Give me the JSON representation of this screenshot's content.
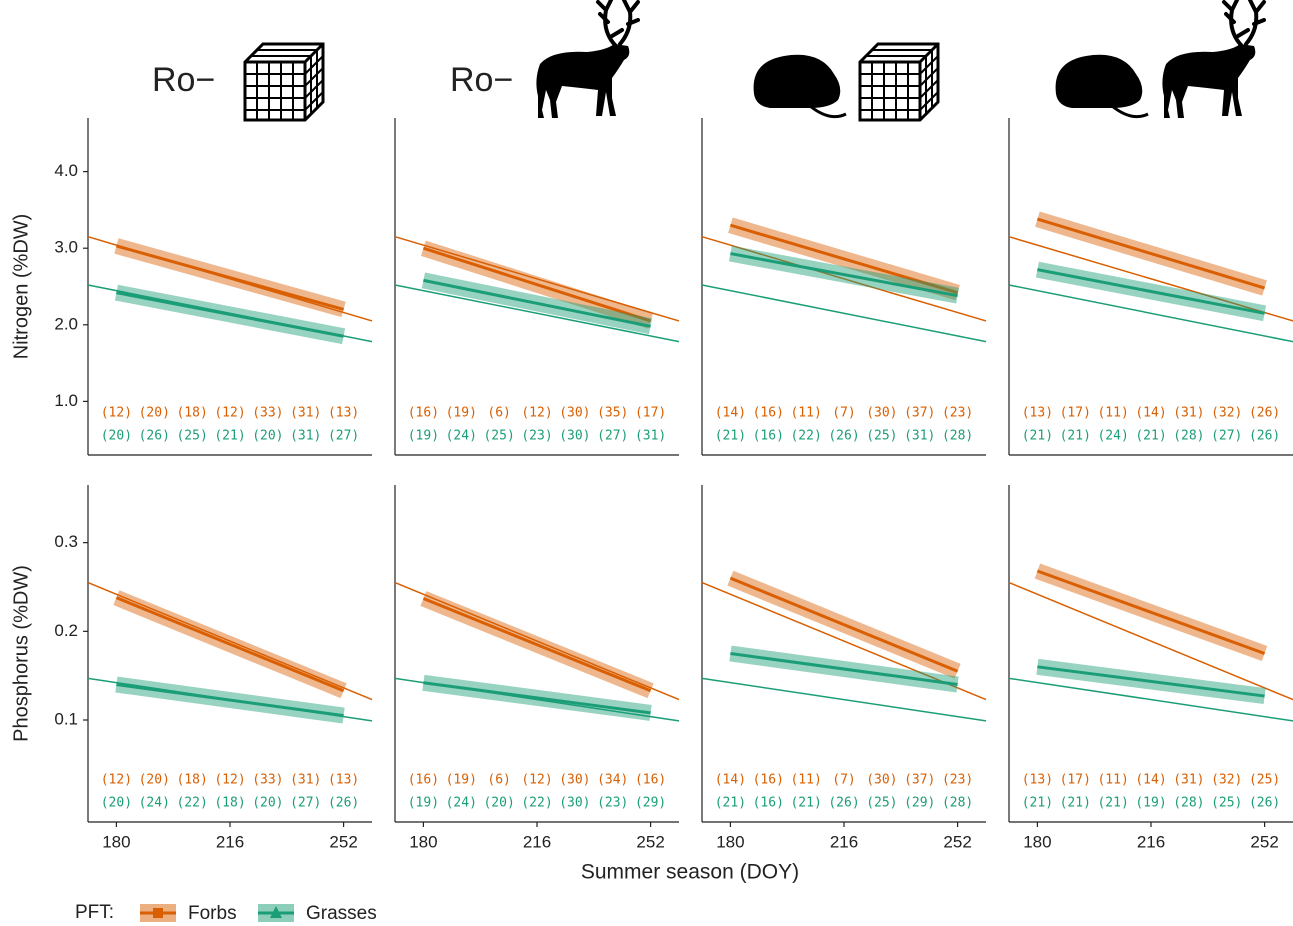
{
  "headers": [
    "Ro−",
    "Ro−"
  ],
  "figure": {
    "xlabel": "Summer season (DOY)",
    "legend_title": "PFT:"
  },
  "chart_data": [
    {
      "type": "line",
      "ylabel": "Nitrogen (%DW)",
      "xlim": [
        171,
        261
      ],
      "ylim": [
        0.3,
        4.7
      ],
      "yticks": [
        {
          "value": 1,
          "label": "1.0"
        },
        {
          "value": 2,
          "label": "2.0"
        },
        {
          "value": 3,
          "label": "3.0"
        },
        {
          "value": 4,
          "label": "4.0"
        }
      ],
      "groups": [
        180,
        192,
        204,
        216,
        228,
        240,
        252
      ],
      "series": [
        {
          "name": "Forbs",
          "color": "#d95f02",
          "marker": "square",
          "x": [
            180,
            252
          ],
          "values": [
            3.03,
            2.2
          ],
          "ref_x": [
            171,
            261
          ],
          "ref_values": [
            3.15,
            2.05
          ],
          "n": [
            12,
            20,
            18,
            12,
            33,
            31,
            13
          ],
          "n_labels": [
            "(12)",
            "(20)",
            "(18)",
            "(12)",
            "(33)",
            "(31)",
            "(13)"
          ]
        },
        {
          "name": "Grasses",
          "color": "#1b9e77",
          "marker": "triangle",
          "x": [
            180,
            252
          ],
          "values": [
            2.42,
            1.85
          ],
          "ref_x": [
            171,
            261
          ],
          "ref_values": [
            2.52,
            1.78
          ],
          "n": [
            20,
            26,
            25,
            21,
            20,
            31,
            27
          ],
          "n_labels": [
            "(20)",
            "(26)",
            "(25)",
            "(21)",
            "(20)",
            "(31)",
            "(27)"
          ]
        }
      ]
    },
    {
      "type": "line",
      "xlim": [
        171,
        261
      ],
      "ylim": [
        0.3,
        4.7
      ],
      "groups": [
        180,
        192,
        204,
        216,
        228,
        240,
        252
      ],
      "series": [
        {
          "name": "Forbs",
          "color": "#d95f02",
          "x": [
            180,
            252
          ],
          "values": [
            3.0,
            2.05
          ],
          "ref_x": [
            171,
            261
          ],
          "ref_values": [
            3.15,
            2.05
          ],
          "n": [
            16,
            19,
            6,
            12,
            30,
            35,
            17
          ],
          "n_labels": [
            "(16)",
            "(19)",
            "(6)",
            "(12)",
            "(30)",
            "(35)",
            "(17)"
          ]
        },
        {
          "name": "Grasses",
          "color": "#1b9e77",
          "x": [
            180,
            252
          ],
          "values": [
            2.58,
            1.98
          ],
          "ref_x": [
            171,
            261
          ],
          "ref_values": [
            2.52,
            1.78
          ],
          "n": [
            19,
            24,
            25,
            23,
            30,
            27,
            31
          ],
          "n_labels": [
            "(19)",
            "(24)",
            "(25)",
            "(23)",
            "(30)",
            "(27)",
            "(31)"
          ]
        }
      ]
    },
    {
      "type": "line",
      "xlim": [
        171,
        261
      ],
      "ylim": [
        0.3,
        4.7
      ],
      "groups": [
        180,
        192,
        204,
        216,
        228,
        240,
        252
      ],
      "series": [
        {
          "name": "Forbs",
          "color": "#d95f02",
          "x": [
            180,
            252
          ],
          "values": [
            3.3,
            2.42
          ],
          "ref_x": [
            171,
            261
          ],
          "ref_values": [
            3.15,
            2.05
          ],
          "n": [
            14,
            16,
            11,
            7,
            30,
            37,
            23
          ],
          "n_labels": [
            "(14)",
            "(16)",
            "(11)",
            "(7)",
            "(30)",
            "(37)",
            "(23)"
          ]
        },
        {
          "name": "Grasses",
          "color": "#1b9e77",
          "x": [
            180,
            252
          ],
          "values": [
            2.93,
            2.38
          ],
          "ref_x": [
            171,
            261
          ],
          "ref_values": [
            2.52,
            1.78
          ],
          "n": [
            21,
            16,
            22,
            26,
            25,
            31,
            28
          ],
          "n_labels": [
            "(21)",
            "(16)",
            "(22)",
            "(26)",
            "(25)",
            "(31)",
            "(28)"
          ]
        }
      ]
    },
    {
      "type": "line",
      "xlim": [
        171,
        261
      ],
      "ylim": [
        0.3,
        4.7
      ],
      "groups": [
        180,
        192,
        204,
        216,
        228,
        240,
        252
      ],
      "series": [
        {
          "name": "Forbs",
          "color": "#d95f02",
          "x": [
            180,
            252
          ],
          "values": [
            3.38,
            2.48
          ],
          "ref_x": [
            171,
            261
          ],
          "ref_values": [
            3.15,
            2.05
          ],
          "n": [
            13,
            17,
            11,
            14,
            31,
            32,
            26
          ],
          "n_labels": [
            "(13)",
            "(17)",
            "(11)",
            "(14)",
            "(31)",
            "(32)",
            "(26)"
          ]
        },
        {
          "name": "Grasses",
          "color": "#1b9e77",
          "x": [
            180,
            252
          ],
          "values": [
            2.72,
            2.15
          ],
          "ref_x": [
            171,
            261
          ],
          "ref_values": [
            2.52,
            1.78
          ],
          "n": [
            21,
            21,
            24,
            21,
            28,
            27,
            26
          ],
          "n_labels": [
            "(21)",
            "(21)",
            "(24)",
            "(21)",
            "(28)",
            "(27)",
            "(26)"
          ]
        }
      ]
    },
    {
      "type": "line",
      "ylabel": "Phosphorus (%DW)",
      "xlim": [
        171,
        261
      ],
      "ylim": [
        -0.015,
        0.365
      ],
      "yticks": [
        0.1,
        0.2,
        0.3
      ],
      "xticks": [
        180,
        216,
        252
      ],
      "groups": [
        180,
        192,
        204,
        216,
        228,
        240,
        252
      ],
      "series": [
        {
          "name": "Forbs",
          "color": "#d95f02",
          "x": [
            180,
            252
          ],
          "values": [
            0.238,
            0.133
          ],
          "ref_x": [
            171,
            261
          ],
          "ref_values": [
            0.255,
            0.123
          ],
          "n": [
            12,
            20,
            18,
            12,
            33,
            31,
            13
          ],
          "n_labels": [
            "(12)",
            "(20)",
            "(18)",
            "(12)",
            "(33)",
            "(31)",
            "(13)"
          ]
        },
        {
          "name": "Grasses",
          "color": "#1b9e77",
          "x": [
            180,
            252
          ],
          "values": [
            0.14,
            0.105
          ],
          "ref_x": [
            171,
            261
          ],
          "ref_values": [
            0.147,
            0.099
          ],
          "n": [
            20,
            24,
            22,
            18,
            20,
            27,
            26
          ],
          "n_labels": [
            "(20)",
            "(24)",
            "(22)",
            "(18)",
            "(20)",
            "(27)",
            "(26)"
          ]
        }
      ]
    },
    {
      "type": "line",
      "xlim": [
        171,
        261
      ],
      "ylim": [
        -0.015,
        0.365
      ],
      "xticks": [
        180,
        216,
        252
      ],
      "groups": [
        180,
        192,
        204,
        216,
        228,
        240,
        252
      ],
      "series": [
        {
          "name": "Forbs",
          "color": "#d95f02",
          "x": [
            180,
            252
          ],
          "values": [
            0.237,
            0.133
          ],
          "ref_x": [
            171,
            261
          ],
          "ref_values": [
            0.255,
            0.123
          ],
          "n": [
            16,
            19,
            6,
            12,
            30,
            34,
            16
          ],
          "n_labels": [
            "(16)",
            "(19)",
            "(6)",
            "(12)",
            "(30)",
            "(34)",
            "(16)"
          ]
        },
        {
          "name": "Grasses",
          "color": "#1b9e77",
          "x": [
            180,
            252
          ],
          "values": [
            0.142,
            0.108
          ],
          "ref_x": [
            171,
            261
          ],
          "ref_values": [
            0.147,
            0.099
          ],
          "n": [
            19,
            24,
            20,
            22,
            30,
            23,
            29
          ],
          "n_labels": [
            "(19)",
            "(24)",
            "(20)",
            "(22)",
            "(30)",
            "(23)",
            "(29)"
          ]
        }
      ]
    },
    {
      "type": "line",
      "xlim": [
        171,
        261
      ],
      "ylim": [
        -0.015,
        0.365
      ],
      "xticks": [
        180,
        216,
        252
      ],
      "groups": [
        180,
        192,
        204,
        216,
        228,
        240,
        252
      ],
      "series": [
        {
          "name": "Forbs",
          "color": "#d95f02",
          "x": [
            180,
            252
          ],
          "values": [
            0.26,
            0.155
          ],
          "ref_x": [
            171,
            261
          ],
          "ref_values": [
            0.255,
            0.123
          ],
          "n": [
            14,
            16,
            11,
            7,
            30,
            37,
            23
          ],
          "n_labels": [
            "(14)",
            "(16)",
            "(11)",
            "(7)",
            "(30)",
            "(37)",
            "(23)"
          ]
        },
        {
          "name": "Grasses",
          "color": "#1b9e77",
          "x": [
            180,
            252
          ],
          "values": [
            0.175,
            0.14
          ],
          "ref_x": [
            171,
            261
          ],
          "ref_values": [
            0.147,
            0.099
          ],
          "n": [
            21,
            16,
            21,
            26,
            25,
            29,
            28
          ],
          "n_labels": [
            "(21)",
            "(16)",
            "(21)",
            "(26)",
            "(25)",
            "(29)",
            "(28)"
          ]
        }
      ]
    },
    {
      "type": "line",
      "xlim": [
        171,
        261
      ],
      "ylim": [
        -0.015,
        0.365
      ],
      "xticks": [
        180,
        216,
        252
      ],
      "groups": [
        180,
        192,
        204,
        216,
        228,
        240,
        252
      ],
      "series": [
        {
          "name": "Forbs",
          "color": "#d95f02",
          "x": [
            180,
            252
          ],
          "values": [
            0.268,
            0.175
          ],
          "ref_x": [
            171,
            261
          ],
          "ref_values": [
            0.255,
            0.123
          ],
          "n": [
            13,
            17,
            11,
            14,
            31,
            32,
            25
          ],
          "n_labels": [
            "(13)",
            "(17)",
            "(11)",
            "(14)",
            "(31)",
            "(32)",
            "(25)"
          ]
        },
        {
          "name": "Grasses",
          "color": "#1b9e77",
          "x": [
            180,
            252
          ],
          "values": [
            0.16,
            0.127
          ],
          "ref_x": [
            171,
            261
          ],
          "ref_values": [
            0.147,
            0.099
          ],
          "n": [
            21,
            21,
            21,
            19,
            28,
            25,
            26
          ],
          "n_labels": [
            "(21)",
            "(21)",
            "(21)",
            "(19)",
            "(28)",
            "(25)",
            "(26)"
          ]
        }
      ]
    }
  ]
}
